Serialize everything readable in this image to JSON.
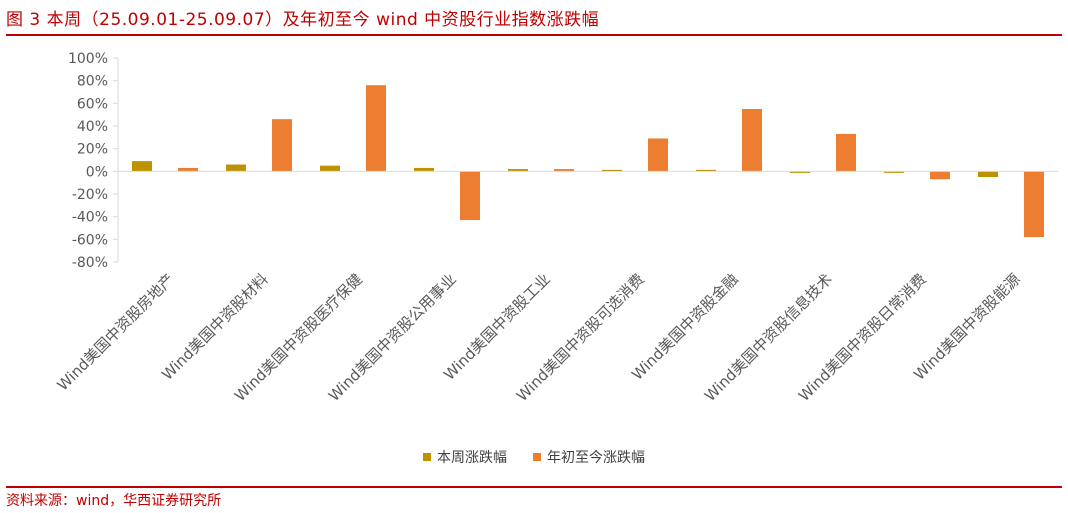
{
  "figure": {
    "title": "图 3  本周（25.09.01-25.09.07）及年初至今 wind 中资股行业指数涨跌幅",
    "source": "资料来源：wind，华西证券研究所"
  },
  "colors": {
    "accent": "#c00000",
    "series_week": "#bf9000",
    "series_ytd": "#ed7d31",
    "axis": "#d9d9d9",
    "text": "#595959"
  },
  "chart_data": {
    "type": "bar",
    "categories": [
      "Wind美国中资股房地产",
      "Wind美国中资股材料",
      "Wind美国中资股医疗保健",
      "Wind美国中资股公用事业",
      "Wind美国中资股工业",
      "Wind美国中资股可选消费",
      "Wind美国中资股金融",
      "Wind美国中资股信息技术",
      "Wind美国中资股日常消费",
      "Wind美国中资股能源"
    ],
    "series": [
      {
        "name": "本周涨跌幅",
        "values": [
          9,
          6,
          5,
          3,
          2,
          1,
          1,
          -1,
          -1,
          -5
        ]
      },
      {
        "name": "年初至今涨跌幅",
        "values": [
          3,
          46,
          76,
          -43,
          2,
          29,
          55,
          33,
          -7,
          -58
        ]
      }
    ],
    "ylim": [
      -80,
      100
    ],
    "yticks": [
      -80,
      -60,
      -40,
      -20,
      0,
      20,
      40,
      60,
      80,
      100
    ],
    "ytick_labels": [
      "-80%",
      "-60%",
      "-40%",
      "-20%",
      "0%",
      "20%",
      "40%",
      "60%",
      "80%",
      "100%"
    ],
    "xlabel": "",
    "ylabel": "",
    "grid": false,
    "legend": "bottom-center"
  }
}
